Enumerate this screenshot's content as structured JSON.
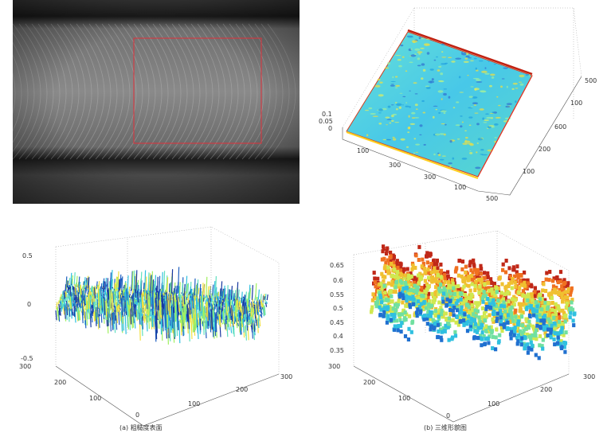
{
  "top_right": {
    "z_ticks": [
      "0.1",
      "0.05",
      "0"
    ],
    "x_ticks": [
      "100",
      "300",
      "300",
      "100",
      "500"
    ],
    "y_ticks": [
      "500",
      "100",
      "600",
      "200",
      "100"
    ]
  },
  "bottom_left": {
    "z_ticks": [
      "0.5",
      "0",
      "-0.5"
    ],
    "y_ticks": [
      "300",
      "200",
      "100",
      "0"
    ],
    "x_ticks": [
      "100",
      "200",
      "300"
    ],
    "caption": "(a) 粗糙度表面"
  },
  "bottom_right": {
    "z_ticks": [
      "0.65",
      "0.6",
      "0.55",
      "0.5",
      "0.45",
      "0.4",
      "0.35"
    ],
    "y_ticks": [
      "300",
      "200",
      "100",
      "0"
    ],
    "x_ticks": [
      "100",
      "200",
      "300"
    ],
    "caption": "(b) 三维形貌图"
  },
  "colors": {
    "photo_bg": "#5a5a5a",
    "roi_box": "#e0303a",
    "surface_cyan": "#48d8e0"
  }
}
